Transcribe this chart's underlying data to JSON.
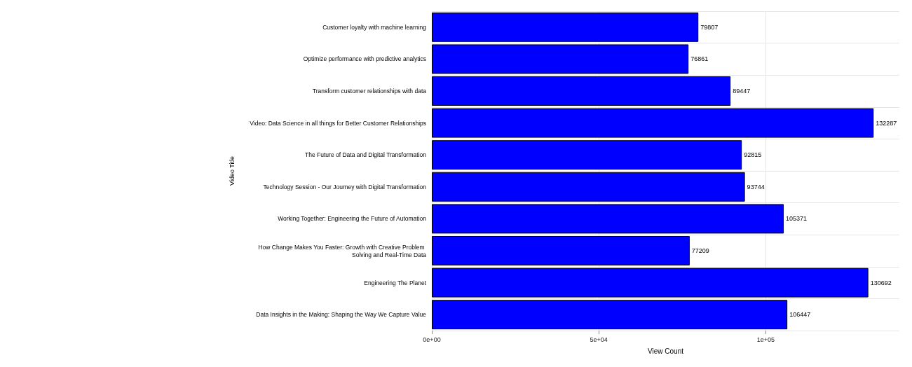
{
  "chart_data": {
    "type": "bar",
    "orientation": "horizontal",
    "xlabel": "View Count",
    "ylabel": "Video Title",
    "categories": [
      "Customer loyalty with machine learning",
      "Optimize performance with predictive analytics",
      "Transform customer relationships with data",
      "Video: Data Science in all things for Better Customer Relationships",
      "The Future of Data and Digital Transformation",
      "Technology Session - Our Journey with Digital Transformation",
      "Working Together: Engineering the Future of Automation",
      "How Change Makes You Faster: Growth with Creative Problem Solving and Real-Time Data",
      "Engineering The Planet",
      "Data Insights in the Making: Shaping the Way We Capture Value"
    ],
    "values": [
      79807,
      76861,
      89447,
      132287,
      92815,
      93744,
      105371,
      77209,
      130692,
      106447
    ],
    "color": "#0000ff",
    "data_labels": true,
    "xlim": [
      0,
      140000
    ],
    "xticks": [
      {
        "value": 0,
        "label": "0e+00"
      },
      {
        "value": 50000,
        "label": "5e+04"
      },
      {
        "value": 100000,
        "label": "1e+05"
      }
    ],
    "grid": true
  }
}
